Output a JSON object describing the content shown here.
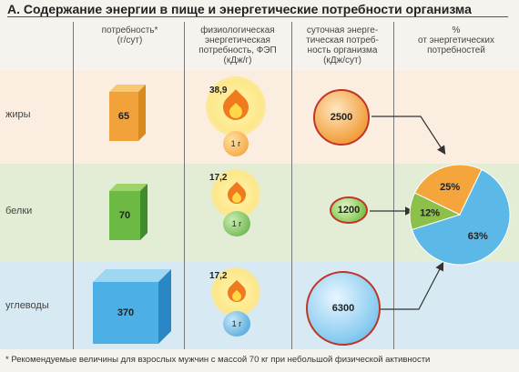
{
  "title": "А. Содержание энергии в пище и энергетические потребности организма",
  "columns": {
    "need_line1": "потребность*",
    "need_line2": "(г/сут)",
    "fev_line1": "физиологическая",
    "fev_line2": "энергетическая",
    "fev_line3": "потребность, ФЭП",
    "fev_line4": "(кДж/г)",
    "daily_line1": "суточная энерге-",
    "daily_line2": "тическая потреб-",
    "daily_line3": "ность организма",
    "daily_line4": "(кДж/сут)",
    "pct_line1": "%",
    "pct_line2": "от энергетических",
    "pct_line3": "потребностей"
  },
  "rows": [
    {
      "label": "жиры",
      "grams": "65",
      "fev": "38,9",
      "unit": "1 г",
      "daily": "2500",
      "color": "#f0a030"
    },
    {
      "label": "белки",
      "grams": "70",
      "fev": "17,2",
      "unit": "1 г",
      "daily": "1200",
      "color": "#5aa83a"
    },
    {
      "label": "углеводы",
      "grams": "370",
      "fev": "17,2",
      "unit": "1 г",
      "daily": "6300",
      "color": "#3aa6e0"
    }
  ],
  "pie": {
    "slices": [
      {
        "label": "25%",
        "value": 25,
        "color": "#f4a63c"
      },
      {
        "label": "63%",
        "value": 63,
        "color": "#5cb8e6"
      },
      {
        "label": "12%",
        "value": 12,
        "color": "#8cc04a"
      }
    ]
  },
  "footnote": "* Рекомендуемые величины для взрослых мужчин с массой  70 кг при небольшой физической активности"
}
